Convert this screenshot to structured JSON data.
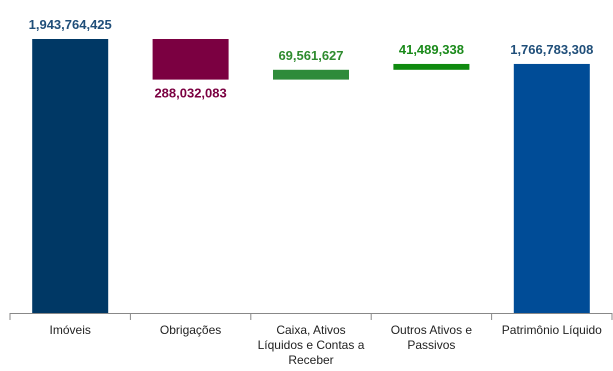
{
  "chart_data": {
    "type": "bar",
    "subtype": "waterfall",
    "title": "",
    "xlabel": "",
    "ylabel": "",
    "ylim": [
      0,
      1943764425
    ],
    "grid": false,
    "legend": "none",
    "categories": [
      [
        "Imóveis"
      ],
      [
        "Obrigações"
      ],
      [
        "Caixa, Ativos",
        "Líquidos e Contas a",
        "Receber"
      ],
      [
        "Outros Ativos e",
        "Passivos"
      ],
      [
        "Patrimônio Líquido"
      ]
    ],
    "bars": [
      {
        "kind": "total",
        "start": 0,
        "end": 1943764425,
        "label": "1,943,764,425",
        "color": "#003865",
        "label_color": "#1f4e79"
      },
      {
        "kind": "decrease",
        "start": 1943764425,
        "end": 1655732342,
        "label": "288,032,083",
        "color": "#7b0041",
        "label_color": "#7b0041"
      },
      {
        "kind": "increase",
        "start": 1655732342,
        "end": 1725293969,
        "label": "69,561,627",
        "color": "#2e8b3a",
        "label_color": "#2e8b2e"
      },
      {
        "kind": "increase",
        "start": 1725293969,
        "end": 1766783307,
        "label": "41,489,338",
        "color": "#0f8a0f",
        "label_color": "#1a8a1a"
      },
      {
        "kind": "total",
        "start": 0,
        "end": 1766783308,
        "label": "1,766,783,308",
        "color": "#004c97",
        "label_color": "#1f4e79"
      }
    ]
  }
}
